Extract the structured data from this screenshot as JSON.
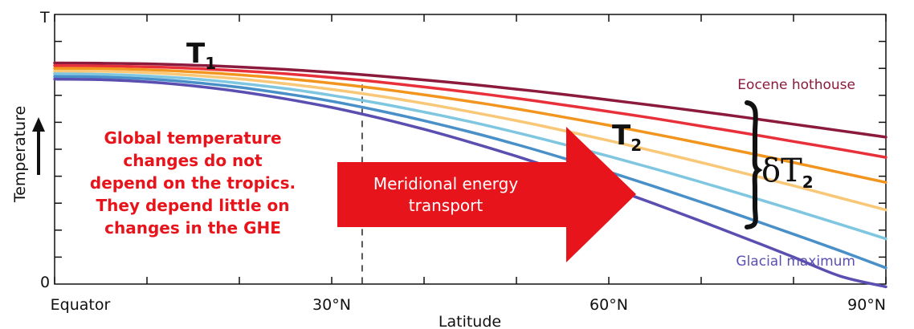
{
  "chart_data": {
    "type": "line",
    "xlabel": "Latitude",
    "ylabel": "Temperature",
    "xlim": [
      0,
      90
    ],
    "ylim": [
      0,
      1
    ],
    "x_ticks": [
      {
        "value": 0,
        "label": "Equator"
      },
      {
        "value": 30,
        "label": "30°N"
      },
      {
        "value": 60,
        "label": "60°N"
      },
      {
        "value": 90,
        "label": "90°N"
      }
    ],
    "y_ticks": [
      {
        "value": 0,
        "label": "0"
      },
      {
        "value": 1,
        "label": "T"
      }
    ],
    "x": [
      0,
      5,
      10,
      15,
      20,
      25,
      30,
      35,
      40,
      45,
      50,
      55,
      60,
      65,
      70,
      75,
      80,
      85,
      90
    ],
    "series": [
      {
        "name": "Eocene hothouse",
        "color": "#8b1a3c",
        "values": [
          0.82,
          0.819,
          0.817,
          0.812,
          0.805,
          0.796,
          0.785,
          0.772,
          0.757,
          0.741,
          0.723,
          0.704,
          0.683,
          0.662,
          0.64,
          0.617,
          0.593,
          0.569,
          0.545
        ]
      },
      {
        "name": "",
        "color": "#e8303a",
        "values": [
          0.81,
          0.809,
          0.806,
          0.8,
          0.791,
          0.78,
          0.766,
          0.75,
          0.731,
          0.711,
          0.689,
          0.665,
          0.64,
          0.614,
          0.586,
          0.558,
          0.529,
          0.5,
          0.47
        ]
      },
      {
        "name": "",
        "color": "#f2951f",
        "values": [
          0.8,
          0.799,
          0.795,
          0.787,
          0.776,
          0.762,
          0.745,
          0.725,
          0.702,
          0.677,
          0.65,
          0.62,
          0.589,
          0.556,
          0.522,
          0.487,
          0.451,
          0.414,
          0.377
        ]
      },
      {
        "name": "",
        "color": "#f8c777",
        "values": [
          0.79,
          0.789,
          0.784,
          0.774,
          0.761,
          0.743,
          0.722,
          0.698,
          0.67,
          0.639,
          0.606,
          0.57,
          0.532,
          0.492,
          0.451,
          0.408,
          0.365,
          0.32,
          0.275
        ]
      },
      {
        "name": "",
        "color": "#7fc6e0",
        "values": [
          0.78,
          0.778,
          0.772,
          0.761,
          0.745,
          0.725,
          0.7,
          0.671,
          0.638,
          0.602,
          0.562,
          0.519,
          0.474,
          0.427,
          0.378,
          0.327,
          0.275,
          0.222,
          0.168
        ]
      },
      {
        "name": "",
        "color": "#4a90c8",
        "values": [
          0.77,
          0.768,
          0.761,
          0.748,
          0.73,
          0.706,
          0.678,
          0.644,
          0.606,
          0.564,
          0.518,
          0.468,
          0.416,
          0.361,
          0.304,
          0.245,
          0.185,
          0.124,
          0.06
        ]
      },
      {
        "name": "Glacial maximum",
        "color": "#5a4fb0",
        "values": [
          0.76,
          0.758,
          0.75,
          0.735,
          0.714,
          0.687,
          0.655,
          0.617,
          0.574,
          0.526,
          0.474,
          0.418,
          0.359,
          0.297,
          0.233,
          0.167,
          0.1,
          0.03,
          -0.01
        ]
      }
    ],
    "annotations": {
      "t1_main": "T",
      "t1_sub": "1",
      "t2_main": "T",
      "t2_sub": "2",
      "delta_main": "δT",
      "delta_sub": "2",
      "note_lines": [
        "Global temperature",
        "changes do not",
        "depend on the tropics.",
        "They depend little on",
        "changes in the GHE"
      ],
      "arrow_lines": [
        "Meridional energy",
        "transport"
      ],
      "arrow_color": "#e8141b",
      "note_color": "#e8141b"
    }
  }
}
